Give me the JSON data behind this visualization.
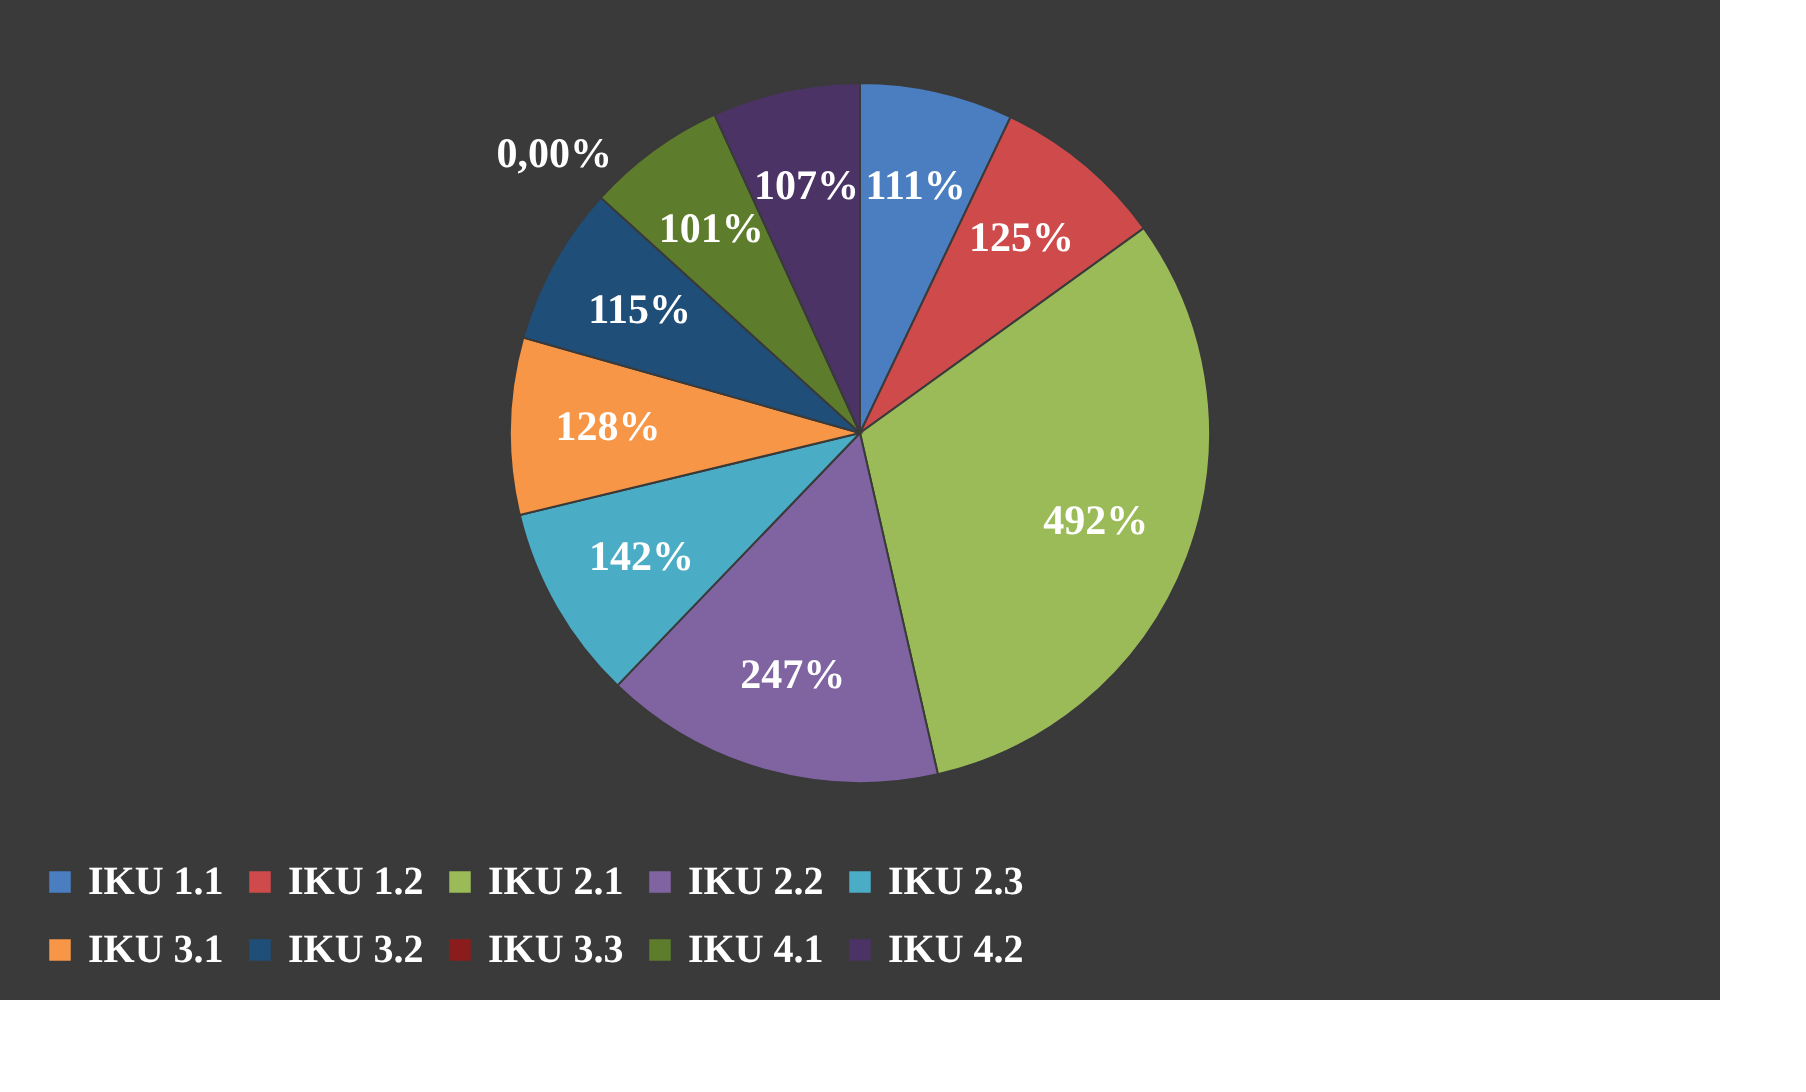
{
  "chart_data": {
    "type": "pie",
    "categories": [
      "IKU 1.1",
      "IKU 1.2",
      "IKU 2.1",
      "IKU 2.2",
      "IKU 2.3",
      "IKU 3.1",
      "IKU 3.2",
      "IKU 3.3",
      "IKU 4.1",
      "IKU 4.2"
    ],
    "values": [
      111,
      125,
      492,
      247,
      142,
      128,
      115,
      0,
      101,
      107
    ],
    "value_labels": [
      "111%",
      "125%",
      "492%",
      "247%",
      "142%",
      "128%",
      "115%",
      "0,00%",
      "101%",
      "107%"
    ],
    "colors": [
      "#4a7ec0",
      "#cf4b4b",
      "#9bbb59",
      "#8064a2",
      "#4bacc6",
      "#f79646",
      "#1f4e79",
      "#8b1c1c",
      "#5e7d2c",
      "#4b3366"
    ],
    "legend": "bottom"
  }
}
